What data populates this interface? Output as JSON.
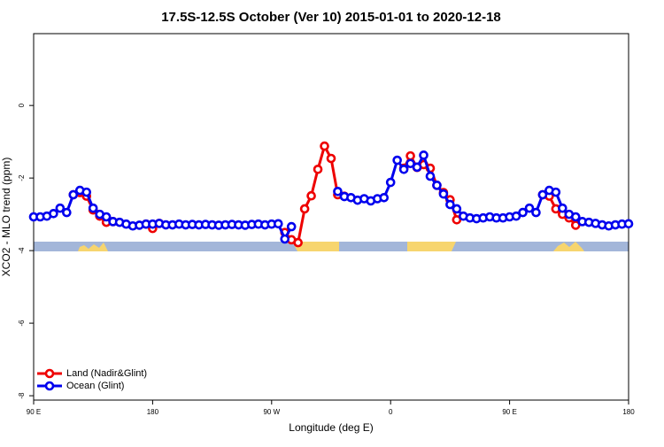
{
  "chart_data": {
    "type": "line",
    "title": "17.5S-12.5S October (Ver 10)   2015-01-01 to 2020-12-18",
    "x_label": "Longitude (deg E)",
    "y_label": "XCO2 - MLO trend (ppm)",
    "x": [
      90,
      95,
      100,
      105,
      110,
      115,
      120,
      125,
      130,
      135,
      140,
      145,
      150,
      155,
      160,
      165,
      170,
      175,
      180,
      185,
      190,
      195,
      200,
      205,
      210,
      215,
      220,
      225,
      230,
      235,
      240,
      245,
      250,
      255,
      260,
      265,
      270,
      275,
      280,
      285,
      290,
      295,
      300,
      305,
      310,
      315,
      320,
      325,
      330,
      335,
      340,
      345,
      350,
      355,
      360,
      365,
      370,
      375,
      380,
      385,
      390,
      395,
      400,
      405,
      410,
      415,
      420,
      425,
      430,
      435,
      440,
      445,
      450,
      455,
      460,
      465,
      470,
      475,
      480,
      485,
      490,
      495,
      500,
      505,
      510,
      515,
      520,
      525,
      530,
      535,
      540
    ],
    "series": [
      {
        "name": "Land (Nadir&Glint)",
        "color": "#ee0000",
        "values": [
          null,
          null,
          null,
          null,
          null,
          null,
          -2.46,
          -2.4,
          -2.5,
          -2.88,
          -3.05,
          -3.22,
          -3.2,
          null,
          null,
          null,
          null,
          -3.27,
          -3.39,
          -3.25,
          null,
          null,
          null,
          null,
          null,
          null,
          null,
          null,
          null,
          null,
          null,
          null,
          null,
          null,
          null,
          null,
          null,
          null,
          -3.5,
          -3.7,
          -3.78,
          -2.85,
          -2.49,
          -1.76,
          -1.12,
          -1.46,
          -2.46,
          -2.5,
          null,
          null,
          null,
          null,
          null,
          null,
          null,
          null,
          -1.73,
          -1.39,
          -1.71,
          -1.63,
          -1.73,
          -2.2,
          -2.4,
          -2.6,
          -3.15,
          null,
          null,
          null,
          null,
          null,
          null,
          null,
          null,
          null,
          null,
          null,
          null,
          -2.46,
          -2.5,
          -2.85,
          -3.0,
          -3.1,
          -3.3,
          null,
          null,
          null,
          null,
          null,
          null,
          null,
          null
        ]
      },
      {
        "name": "Ocean (Glint)",
        "color": "#0000ee",
        "values": [
          -3.07,
          -3.07,
          -3.05,
          -2.98,
          -2.83,
          -2.95,
          -2.46,
          -2.34,
          -2.39,
          -2.83,
          -3.0,
          -3.07,
          -3.2,
          -3.22,
          -3.27,
          -3.32,
          -3.3,
          -3.27,
          -3.27,
          -3.25,
          -3.29,
          -3.29,
          -3.27,
          -3.29,
          -3.28,
          -3.29,
          -3.28,
          -3.29,
          -3.3,
          -3.29,
          -3.28,
          -3.29,
          -3.3,
          -3.28,
          -3.27,
          -3.29,
          -3.27,
          -3.26,
          -3.68,
          -3.34,
          null,
          null,
          null,
          null,
          null,
          null,
          -2.37,
          -2.51,
          -2.54,
          -2.61,
          -2.57,
          -2.63,
          -2.57,
          -2.54,
          -2.12,
          -1.51,
          -1.76,
          -1.6,
          -1.7,
          -1.37,
          -1.95,
          -2.2,
          -2.44,
          -2.73,
          -2.85,
          -3.05,
          -3.1,
          -3.12,
          -3.1,
          -3.07,
          -3.1,
          -3.1,
          -3.07,
          -3.05,
          -2.95,
          -2.83,
          -2.95,
          -2.46,
          -2.34,
          -2.39,
          -2.83,
          -3.0,
          -3.07,
          -3.2,
          -3.22,
          -3.25,
          -3.29,
          -3.32,
          -3.29,
          -3.27,
          -3.26
        ]
      }
    ],
    "xlim": [
      90,
      540
    ],
    "xticks": [
      {
        "value": 90,
        "label": "90 E"
      },
      {
        "value": 180,
        "label": "180"
      },
      {
        "value": 270,
        "label": "90 W"
      },
      {
        "value": 360,
        "label": "0"
      },
      {
        "value": 450,
        "label": "90 E"
      },
      {
        "value": 540,
        "label": "180"
      }
    ],
    "ylim": [
      -8.12,
      1.98
    ],
    "yticks": [
      0,
      -2,
      -4,
      -6,
      -8
    ],
    "legend": "bottomleft"
  }
}
